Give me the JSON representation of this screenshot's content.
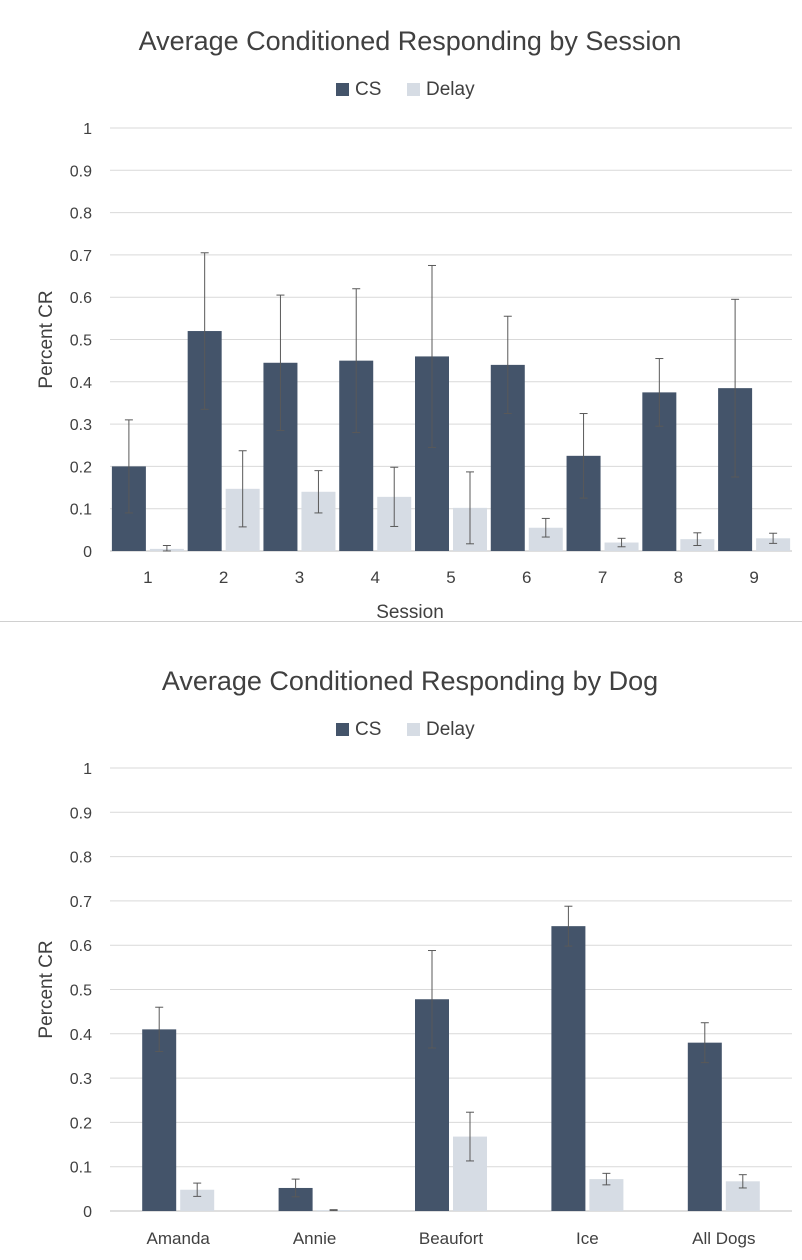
{
  "colors": {
    "cs": "#44546a",
    "delay": "#d6dce4",
    "grid": "#d9d9d9",
    "text": "#404040",
    "errorbar": "#595959"
  },
  "chart_data": [
    {
      "type": "bar",
      "title": "Average Conditioned Responding by Session",
      "xlabel": "Session",
      "ylabel": "Percent CR",
      "ylim": [
        0,
        1
      ],
      "yticks": [
        "0",
        "0.1",
        "0.2",
        "0.3",
        "0.4",
        "0.5",
        "0.6",
        "0.7",
        "0.8",
        "0.9",
        "1"
      ],
      "legend_position": "top-center",
      "grid": true,
      "categories": [
        "1",
        "2",
        "3",
        "4",
        "5",
        "6",
        "7",
        "8",
        "9"
      ],
      "series": [
        {
          "name": "CS",
          "values": [
            0.2,
            0.52,
            0.445,
            0.45,
            0.46,
            0.44,
            0.225,
            0.375,
            0.385
          ],
          "errors": [
            0.11,
            0.185,
            0.16,
            0.17,
            0.215,
            0.115,
            0.1,
            0.08,
            0.21
          ]
        },
        {
          "name": "Delay",
          "values": [
            0.005,
            0.147,
            0.14,
            0.128,
            0.102,
            0.055,
            0.02,
            0.028,
            0.03
          ],
          "errors": [
            0.008,
            0.09,
            0.05,
            0.07,
            0.085,
            0.022,
            0.01,
            0.015,
            0.012
          ]
        }
      ]
    },
    {
      "type": "bar",
      "title": "Average Conditioned Responding by Dog",
      "xlabel": "",
      "ylabel": "Percent CR",
      "ylim": [
        0,
        1
      ],
      "yticks": [
        "0",
        "0.1",
        "0.2",
        "0.3",
        "0.4",
        "0.5",
        "0.6",
        "0.7",
        "0.8",
        "0.9",
        "1"
      ],
      "legend_position": "top-center",
      "grid": true,
      "categories": [
        "Amanda",
        "Annie",
        "Beaufort",
        "Ice",
        "All Dogs"
      ],
      "series": [
        {
          "name": "CS",
          "values": [
            0.41,
            0.052,
            0.478,
            0.643,
            0.38
          ],
          "errors": [
            0.05,
            0.02,
            0.11,
            0.045,
            0.045
          ]
        },
        {
          "name": "Delay",
          "values": [
            0.048,
            0.002,
            0.168,
            0.072,
            0.067
          ],
          "errors": [
            0.015,
            0.001,
            0.055,
            0.013,
            0.015
          ]
        }
      ]
    }
  ]
}
